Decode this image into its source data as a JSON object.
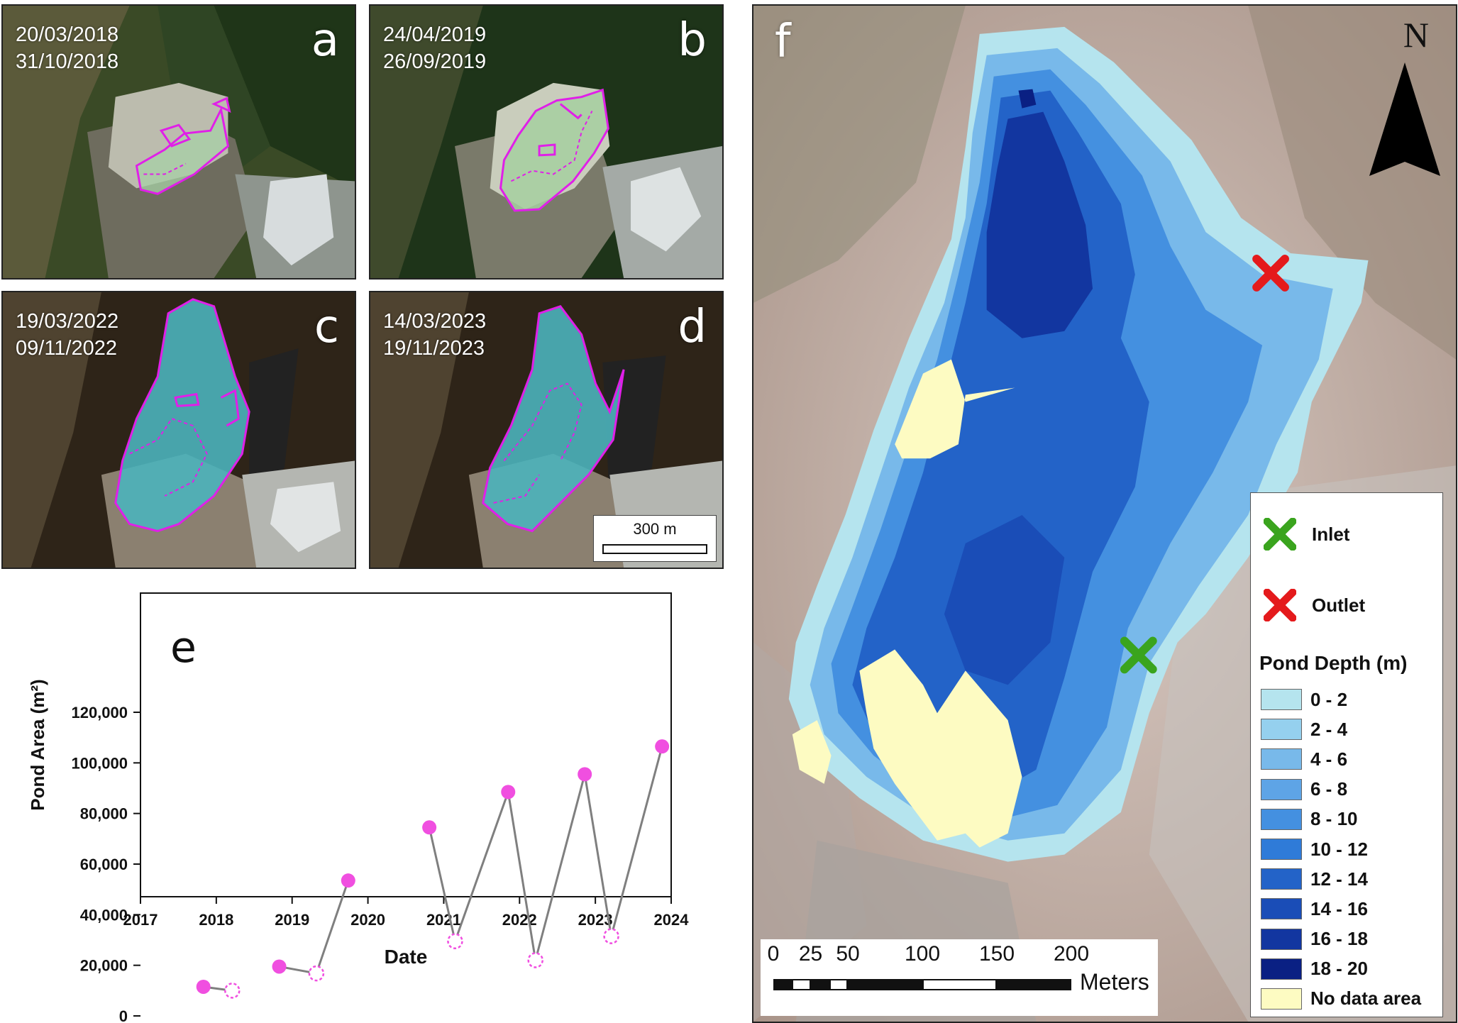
{
  "panels": [
    {
      "letter": "a",
      "dates": [
        "20/03/2018",
        "31/10/2018"
      ]
    },
    {
      "letter": "b",
      "dates": [
        "24/04/2019",
        "26/09/2019"
      ]
    },
    {
      "letter": "c",
      "dates": [
        "19/03/2022",
        "09/11/2022"
      ]
    },
    {
      "letter": "d",
      "dates": [
        "14/03/2023",
        "19/11/2023"
      ]
    }
  ],
  "inset_scale_label": "300 m",
  "chart_data": {
    "type": "scatter",
    "panel_letter": "e",
    "xlabel": "Date",
    "ylabel": "Pond Area (m²)",
    "xlim": [
      2017,
      2024
    ],
    "ylim": [
      0,
      120000
    ],
    "x_ticks": [
      "2017",
      "2018",
      "2019",
      "2020",
      "2021",
      "2022",
      "2023",
      "2024"
    ],
    "y_ticks": [
      "0",
      "20,000",
      "40,000",
      "60,000",
      "80,000",
      "100,000",
      "120,000"
    ],
    "line_color": "#7f7f7f",
    "marker_color": "#f04fe0",
    "segments": [
      [
        [
          2017.83,
          11500
        ],
        [
          2018.21,
          10000
        ]
      ],
      [
        [
          2018.83,
          19500
        ],
        [
          2019.32,
          16800
        ],
        [
          2019.74,
          53500
        ]
      ],
      [
        [
          2020.81,
          74500
        ],
        [
          2021.15,
          29500
        ],
        [
          2021.85,
          88500
        ],
        [
          2022.21,
          22000
        ],
        [
          2022.86,
          95500
        ],
        [
          2023.21,
          31500
        ],
        [
          2023.88,
          106500
        ]
      ]
    ],
    "points": [
      {
        "x": 2017.83,
        "y": 11500,
        "filled": true
      },
      {
        "x": 2018.21,
        "y": 10000,
        "filled": false
      },
      {
        "x": 2018.83,
        "y": 19500,
        "filled": true
      },
      {
        "x": 2019.32,
        "y": 16800,
        "filled": false
      },
      {
        "x": 2019.74,
        "y": 53500,
        "filled": true
      },
      {
        "x": 2020.81,
        "y": 74500,
        "filled": true
      },
      {
        "x": 2021.15,
        "y": 29500,
        "filled": false
      },
      {
        "x": 2021.85,
        "y": 88500,
        "filled": true
      },
      {
        "x": 2022.21,
        "y": 22000,
        "filled": false
      },
      {
        "x": 2022.86,
        "y": 95500,
        "filled": true
      },
      {
        "x": 2023.21,
        "y": 31500,
        "filled": false
      },
      {
        "x": 2023.88,
        "y": 106500,
        "filled": true
      }
    ]
  },
  "map": {
    "panel_letter": "f",
    "north_label": "N",
    "markers": [
      {
        "label": "Inlet",
        "color": "#3aa41e"
      },
      {
        "label": "Outlet",
        "color": "#e41a1c"
      }
    ],
    "legend_title": "Pond Depth (m)",
    "depth_classes": [
      {
        "label": "0 - 2",
        "color": "#b5e4ee"
      },
      {
        "label": "2 - 4",
        "color": "#95d0ee"
      },
      {
        "label": "4 - 6",
        "color": "#78b9ea"
      },
      {
        "label": "6 - 8",
        "color": "#5ea4e6"
      },
      {
        "label": "8 - 10",
        "color": "#4490e0"
      },
      {
        "label": "10 - 12",
        "color": "#2f7bd8"
      },
      {
        "label": "12 - 14",
        "color": "#2363c8"
      },
      {
        "label": "14 - 16",
        "color": "#1a4db7"
      },
      {
        "label": "16 - 18",
        "color": "#1236a0"
      },
      {
        "label": "18 - 20",
        "color": "#0a2083"
      }
    ],
    "no_data": {
      "label": "No data area",
      "color": "#fdfbc2"
    },
    "scale": {
      "ticks": [
        "0",
        "25",
        "50",
        "100",
        "150",
        "200"
      ],
      "units": "Meters"
    }
  }
}
